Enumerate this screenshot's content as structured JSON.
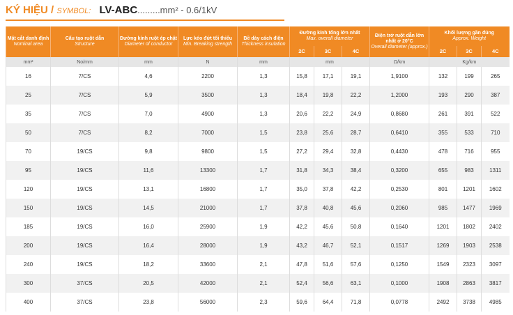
{
  "title": {
    "label": "KÝ HIỆU /",
    "symbol": "SYMBOL:",
    "code": "LV-ABC",
    "spec": ".........mm² - 0.6/1kV"
  },
  "table": {
    "headers": [
      {
        "vi": "Mặt cắt danh định",
        "en": "Nominal area"
      },
      {
        "vi": "Cấu tạo ruột dẫn",
        "en": "Structure"
      },
      {
        "vi": "Đường kính ruột ép chặt",
        "en": "Diameter of conductor"
      },
      {
        "vi": "Lực kéo đứt tối thiểu",
        "en": "Min. Breaking strength"
      },
      {
        "vi": "Bề dày cách điện",
        "en": "Thickness insulation"
      },
      {
        "vi": "Đường kính tổng lớn nhất",
        "en": "Max. overall diameter"
      },
      {
        "vi": "Điện trở ruột dẫn lớn nhất ở 20°C",
        "en": "Overall diameter (approx.)"
      },
      {
        "vi": "Khối lượng gần đúng",
        "en": "Approx. Weight"
      }
    ],
    "subheaders": [
      "2C",
      "3C",
      "4C",
      "2C",
      "3C",
      "4C"
    ],
    "units": [
      "mm²",
      "No/mm",
      "mm",
      "N",
      "mm",
      "mm",
      "Ω/km",
      "Kg/km"
    ],
    "rows": [
      [
        "16",
        "7/CS",
        "4,6",
        "2200",
        "1,3",
        "15,8",
        "17,1",
        "19,1",
        "1,9100",
        "132",
        "199",
        "265"
      ],
      [
        "25",
        "7/CS",
        "5,9",
        "3500",
        "1,3",
        "18,4",
        "19,8",
        "22,2",
        "1,2000",
        "193",
        "290",
        "387"
      ],
      [
        "35",
        "7/CS",
        "7,0",
        "4900",
        "1,3",
        "20,6",
        "22,2",
        "24,9",
        "0,8680",
        "261",
        "391",
        "522"
      ],
      [
        "50",
        "7/CS",
        "8,2",
        "7000",
        "1,5",
        "23,8",
        "25,6",
        "28,7",
        "0,6410",
        "355",
        "533",
        "710"
      ],
      [
        "70",
        "19/CS",
        "9,8",
        "9800",
        "1,5",
        "27,2",
        "29,4",
        "32,8",
        "0,4430",
        "478",
        "716",
        "955"
      ],
      [
        "95",
        "19/CS",
        "11,6",
        "13300",
        "1,7",
        "31,8",
        "34,3",
        "38,4",
        "0,3200",
        "655",
        "983",
        "1311"
      ],
      [
        "120",
        "19/CS",
        "13,1",
        "16800",
        "1,7",
        "35,0",
        "37,8",
        "42,2",
        "0,2530",
        "801",
        "1201",
        "1602"
      ],
      [
        "150",
        "19/CS",
        "14,5",
        "21000",
        "1,7",
        "37,8",
        "40,8",
        "45,6",
        "0,2060",
        "985",
        "1477",
        "1969"
      ],
      [
        "185",
        "19/CS",
        "16,0",
        "25900",
        "1,9",
        "42,2",
        "45,6",
        "50,8",
        "0,1640",
        "1201",
        "1802",
        "2402"
      ],
      [
        "200",
        "19/CS",
        "16,4",
        "28000",
        "1,9",
        "43,2",
        "46,7",
        "52,1",
        "0,1517",
        "1269",
        "1903",
        "2538"
      ],
      [
        "240",
        "19/CS",
        "18,2",
        "33600",
        "2,1",
        "47,8",
        "51,6",
        "57,6",
        "0,1250",
        "1549",
        "2323",
        "3097"
      ],
      [
        "300",
        "37/CS",
        "20,5",
        "42000",
        "2,1",
        "52,4",
        "56,6",
        "63,1",
        "0,1000",
        "1908",
        "2863",
        "3817"
      ],
      [
        "400",
        "37/CS",
        "23,8",
        "56000",
        "2,3",
        "59,6",
        "64,4",
        "71,8",
        "0,0778",
        "2492",
        "3738",
        "4985"
      ]
    ]
  }
}
